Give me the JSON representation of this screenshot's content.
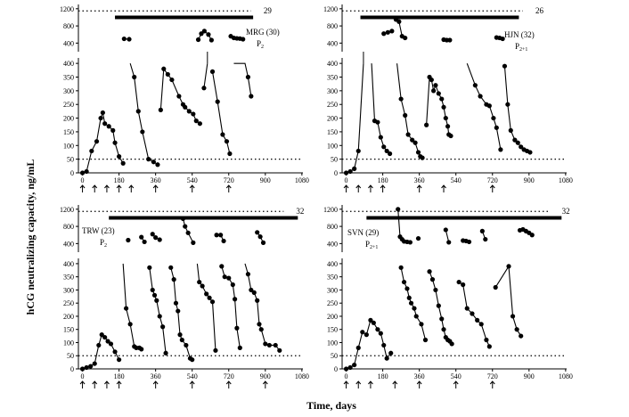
{
  "figure": {
    "ylabel": "hCG neutralizing capacity, ng/mL",
    "xlabel": "Time, days"
  },
  "chart_data": [
    {
      "type": "line",
      "subject": "MRG (30)",
      "parity": "P",
      "parity_sub": "2",
      "count_label": "29",
      "x_ticks": [
        0,
        180,
        360,
        540,
        720,
        900,
        1080
      ],
      "xlim": [
        -20,
        1085
      ],
      "top_yticks": [
        400,
        800,
        1200
      ],
      "top_ylim": [
        200,
        1300
      ],
      "bottom_yticks": [
        0,
        50,
        100,
        150,
        200,
        250,
        300,
        350,
        400
      ],
      "bottom_ylim": [
        0,
        420
      ],
      "threshold": 50,
      "grid": false,
      "dotted_line_top": {
        "y": 1150,
        "x_start": -20,
        "x_end": 830
      },
      "solid_bar_top": {
        "y": 1000,
        "x_start": 160,
        "x_end": 840
      },
      "injection_days": [
        0,
        60,
        120,
        180,
        240,
        360,
        540,
        720
      ],
      "bottom_series": [
        [
          [
            0,
            0
          ],
          [
            20,
            5
          ],
          [
            45,
            80
          ],
          [
            70,
            115
          ],
          [
            90,
            200
          ],
          [
            100,
            220
          ],
          [
            110,
            180
          ],
          [
            130,
            170
          ],
          [
            150,
            155
          ],
          [
            160,
            110
          ],
          [
            180,
            60
          ],
          [
            200,
            35
          ]
        ],
        [
          [
            235,
            400
          ],
          [
            255,
            350
          ],
          [
            275,
            225
          ],
          [
            295,
            150
          ],
          [
            325,
            50
          ],
          [
            350,
            40
          ],
          [
            370,
            30
          ]
        ],
        [
          [
            385,
            230
          ],
          [
            400,
            380
          ],
          [
            420,
            360
          ],
          [
            440,
            340
          ],
          [
            475,
            280
          ],
          [
            495,
            250
          ],
          [
            505,
            240
          ],
          [
            525,
            225
          ],
          [
            545,
            215
          ],
          [
            560,
            190
          ],
          [
            578,
            180
          ]
        ],
        [
          [
            598,
            310
          ],
          [
            615,
            400
          ]
        ],
        [
          [
            640,
            370
          ],
          [
            665,
            260
          ],
          [
            690,
            140
          ],
          [
            710,
            115
          ],
          [
            725,
            70
          ]
        ],
        [
          [
            745,
            400
          ],
          [
            800,
            400
          ],
          [
            815,
            350
          ],
          [
            830,
            280
          ]
        ]
      ],
      "top_series": [
        [
          [
            205,
            500
          ],
          [
            230,
            490
          ]
        ],
        [
          [
            570,
            480
          ],
          [
            585,
            620
          ],
          [
            600,
            680
          ],
          [
            620,
            600
          ],
          [
            635,
            470
          ]
        ],
        [
          [
            730,
            560
          ],
          [
            745,
            520
          ],
          [
            760,
            510
          ],
          [
            775,
            505
          ],
          [
            790,
            490
          ]
        ]
      ]
    },
    {
      "type": "line",
      "subject": "HJN (32)",
      "parity": "P",
      "parity_sub": "2+1",
      "count_label": "26",
      "x_ticks": [
        0,
        180,
        360,
        540,
        720,
        900,
        1080
      ],
      "xlim": [
        -20,
        1085
      ],
      "top_yticks": [
        400,
        800,
        1200
      ],
      "top_ylim": [
        200,
        1300
      ],
      "bottom_yticks": [
        0,
        50,
        100,
        150,
        200,
        250,
        300,
        350,
        400
      ],
      "bottom_ylim": [
        0,
        420
      ],
      "threshold": 50,
      "grid": false,
      "dotted_line_top": {
        "y": 1150,
        "x_start": -20,
        "x_end": 870
      },
      "solid_bar_top": {
        "y": 1000,
        "x_start": 70,
        "x_end": 850
      },
      "injection_days": [
        0,
        60,
        120,
        180,
        360,
        480,
        720
      ],
      "bottom_series": [
        [
          [
            0,
            0
          ],
          [
            20,
            5
          ],
          [
            40,
            15
          ],
          [
            60,
            80
          ],
          [
            85,
            400
          ]
        ],
        [
          [
            125,
            400
          ],
          [
            140,
            190
          ],
          [
            155,
            185
          ],
          [
            170,
            130
          ],
          [
            185,
            95
          ],
          [
            200,
            80
          ],
          [
            215,
            70
          ]
        ],
        [
          [
            250,
            400
          ],
          [
            270,
            270
          ],
          [
            290,
            210
          ],
          [
            305,
            140
          ],
          [
            325,
            120
          ],
          [
            340,
            110
          ],
          [
            355,
            75
          ],
          [
            365,
            60
          ],
          [
            375,
            55
          ]
        ],
        [
          [
            395,
            175
          ],
          [
            410,
            350
          ],
          [
            420,
            340
          ],
          [
            430,
            300
          ],
          [
            440,
            320
          ],
          [
            455,
            290
          ],
          [
            470,
            270
          ],
          [
            480,
            240
          ],
          [
            490,
            200
          ],
          [
            500,
            170
          ],
          [
            505,
            140
          ],
          [
            515,
            135
          ]
        ],
        [
          [
            595,
            400
          ],
          [
            635,
            320
          ],
          [
            660,
            280
          ],
          [
            690,
            250
          ],
          [
            705,
            245
          ],
          [
            725,
            200
          ],
          [
            740,
            165
          ],
          [
            760,
            85
          ]
        ],
        [
          [
            780,
            390
          ],
          [
            795,
            250
          ],
          [
            810,
            155
          ],
          [
            830,
            120
          ],
          [
            845,
            110
          ],
          [
            860,
            95
          ],
          [
            875,
            85
          ],
          [
            890,
            80
          ],
          [
            905,
            75
          ]
        ]
      ],
      "top_series": [
        [
          [
            185,
            620
          ],
          [
            205,
            650
          ],
          [
            225,
            680
          ]
        ],
        [
          [
            245,
            950
          ],
          [
            260,
            900
          ],
          [
            275,
            560
          ],
          [
            290,
            520
          ]
        ],
        [
          [
            480,
            480
          ],
          [
            495,
            470
          ],
          [
            510,
            470
          ]
        ],
        [
          [
            740,
            530
          ],
          [
            755,
            520
          ],
          [
            770,
            500
          ]
        ]
      ]
    },
    {
      "type": "line",
      "subject": "TRW (23)",
      "parity": "P",
      "parity_sub": "2",
      "count_label": "32",
      "x_ticks": [
        0,
        180,
        360,
        540,
        720,
        900,
        1080
      ],
      "xlim": [
        -20,
        1085
      ],
      "top_yticks": [
        400,
        800,
        1200
      ],
      "top_ylim": [
        200,
        1300
      ],
      "bottom_yticks": [
        0,
        50,
        100,
        150,
        200,
        250,
        300,
        350,
        400
      ],
      "bottom_ylim": [
        0,
        420
      ],
      "threshold": 50,
      "grid": false,
      "dotted_line_top": {
        "y": 1150,
        "x_start": -20,
        "x_end": 990
      },
      "solid_bar_top": {
        "y": 1000,
        "x_start": 130,
        "x_end": 1060
      },
      "injection_days": [
        0,
        60,
        120,
        180,
        360,
        540,
        720,
        900
      ],
      "bottom_series": [
        [
          [
            0,
            0
          ],
          [
            20,
            5
          ],
          [
            40,
            10
          ],
          [
            60,
            20
          ],
          [
            80,
            90
          ],
          [
            95,
            130
          ],
          [
            110,
            120
          ],
          [
            125,
            105
          ],
          [
            140,
            95
          ],
          [
            160,
            65
          ],
          [
            180,
            35
          ]
        ],
        [
          [
            200,
            400
          ],
          [
            215,
            230
          ],
          [
            235,
            170
          ],
          [
            255,
            85
          ],
          [
            265,
            80
          ],
          [
            280,
            80
          ],
          [
            290,
            75
          ]
        ],
        [
          [
            330,
            385
          ],
          [
            345,
            300
          ],
          [
            355,
            280
          ],
          [
            365,
            260
          ],
          [
            380,
            200
          ],
          [
            395,
            160
          ],
          [
            410,
            60
          ]
        ],
        [
          [
            435,
            385
          ],
          [
            450,
            340
          ],
          [
            460,
            250
          ],
          [
            470,
            220
          ],
          [
            480,
            130
          ],
          [
            490,
            110
          ],
          [
            510,
            90
          ],
          [
            530,
            40
          ],
          [
            540,
            35
          ]
        ],
        [
          [
            565,
            400
          ],
          [
            575,
            330
          ],
          [
            590,
            315
          ],
          [
            610,
            285
          ],
          [
            625,
            270
          ],
          [
            640,
            255
          ],
          [
            655,
            70
          ]
        ],
        [
          [
            685,
            390
          ],
          [
            700,
            350
          ],
          [
            720,
            345
          ],
          [
            740,
            320
          ],
          [
            750,
            265
          ],
          [
            760,
            155
          ],
          [
            775,
            80
          ]
        ],
        [
          [
            800,
            400
          ],
          [
            815,
            360
          ],
          [
            830,
            300
          ],
          [
            845,
            290
          ],
          [
            860,
            260
          ],
          [
            870,
            170
          ],
          [
            880,
            150
          ],
          [
            900,
            95
          ],
          [
            920,
            90
          ],
          [
            950,
            90
          ],
          [
            970,
            70
          ]
        ]
      ],
      "top_series": [
        [
          [
            225,
            480
          ]
        ],
        [
          [
            290,
            550
          ],
          [
            305,
            440
          ]
        ],
        [
          [
            345,
            620
          ],
          [
            360,
            540
          ],
          [
            380,
            490
          ]
        ],
        [
          [
            495,
            980
          ],
          [
            505,
            800
          ],
          [
            520,
            650
          ],
          [
            545,
            420
          ]
        ],
        [
          [
            660,
            600
          ],
          [
            680,
            600
          ],
          [
            695,
            460
          ]
        ],
        [
          [
            860,
            660
          ],
          [
            875,
            560
          ],
          [
            890,
            420
          ]
        ]
      ]
    },
    {
      "type": "line",
      "subject": "SVN (29)",
      "parity": "P",
      "parity_sub": "2+1",
      "count_label": "32",
      "x_ticks": [
        0,
        180,
        360,
        540,
        720,
        900,
        1080
      ],
      "xlim": [
        -20,
        1085
      ],
      "top_yticks": [
        400,
        800,
        1200
      ],
      "top_ylim": [
        200,
        1300
      ],
      "bottom_yticks": [
        0,
        50,
        100,
        150,
        200,
        250,
        300,
        350,
        400
      ],
      "bottom_ylim": [
        0,
        420
      ],
      "threshold": 50,
      "grid": false,
      "dotted_line_top": {
        "y": 1150,
        "x_start": -20,
        "x_end": 1000
      },
      "solid_bar_top": {
        "y": 1000,
        "x_start": 100,
        "x_end": 1060
      },
      "injection_days": [
        0,
        60,
        120,
        240,
        360,
        540,
        720
      ],
      "bottom_series": [
        [
          [
            0,
            0
          ],
          [
            20,
            5
          ],
          [
            40,
            15
          ],
          [
            60,
            80
          ],
          [
            80,
            140
          ],
          [
            100,
            130
          ],
          [
            120,
            185
          ],
          [
            135,
            175
          ],
          [
            155,
            150
          ],
          [
            170,
            135
          ],
          [
            185,
            90
          ],
          [
            200,
            40
          ],
          [
            220,
            60
          ]
        ],
        [
          [
            270,
            385
          ],
          [
            285,
            330
          ],
          [
            300,
            305
          ],
          [
            310,
            270
          ],
          [
            320,
            250
          ],
          [
            335,
            230
          ],
          [
            345,
            200
          ],
          [
            370,
            170
          ],
          [
            390,
            110
          ]
        ],
        [
          [
            410,
            370
          ],
          [
            425,
            340
          ],
          [
            440,
            300
          ],
          [
            455,
            240
          ],
          [
            470,
            190
          ],
          [
            480,
            150
          ],
          [
            490,
            120
          ],
          [
            500,
            110
          ],
          [
            510,
            105
          ],
          [
            520,
            95
          ]
        ],
        [
          [
            555,
            330
          ],
          [
            575,
            320
          ],
          [
            595,
            230
          ],
          [
            620,
            210
          ],
          [
            645,
            185
          ],
          [
            665,
            170
          ],
          [
            690,
            110
          ],
          [
            705,
            85
          ]
        ],
        [
          [
            735,
            310
          ],
          [
            800,
            390
          ],
          [
            820,
            200
          ],
          [
            840,
            150
          ],
          [
            860,
            125
          ]
        ]
      ],
      "top_series": [
        [
          [
            255,
            1200
          ],
          [
            265,
            560
          ],
          [
            275,
            500
          ],
          [
            285,
            450
          ],
          [
            300,
            440
          ],
          [
            315,
            430
          ]
        ],
        [
          [
            355,
            520
          ]
        ],
        [
          [
            490,
            720
          ],
          [
            505,
            430
          ]
        ],
        [
          [
            575,
            470
          ],
          [
            590,
            460
          ],
          [
            605,
            440
          ]
        ],
        [
          [
            670,
            690
          ],
          [
            685,
            500
          ]
        ],
        [
          [
            855,
            710
          ],
          [
            870,
            730
          ],
          [
            885,
            690
          ],
          [
            900,
            650
          ],
          [
            915,
            600
          ]
        ]
      ]
    }
  ]
}
